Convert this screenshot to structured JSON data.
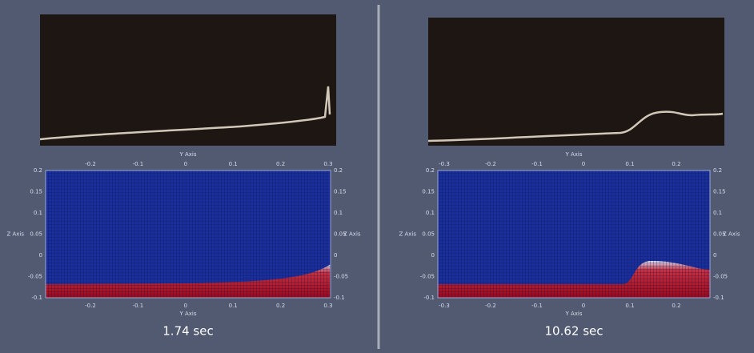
{
  "panels": [
    {
      "caption": "1.74 sec",
      "x_axis_title": "Y Axis",
      "y_axis_title": "Z Axis",
      "x_ticks": [
        "-0.2",
        "-0.1",
        "0",
        "0.1",
        "0.2",
        "0.3"
      ],
      "y_ticks": [
        "0.2",
        "0.15",
        "0.1",
        "0.05",
        "0",
        "-0.05",
        "-0.1"
      ]
    },
    {
      "caption": "10.62 sec",
      "x_axis_title": "Y Axis",
      "y_axis_title": "Z Axis",
      "x_ticks": [
        "-0.3",
        "-0.2",
        "-0.1",
        "0",
        "0.1",
        "0.2"
      ],
      "y_ticks": [
        "0.2",
        "0.15",
        "0.1",
        "0.05",
        "0",
        "-0.05",
        "-0.1"
      ]
    }
  ]
}
